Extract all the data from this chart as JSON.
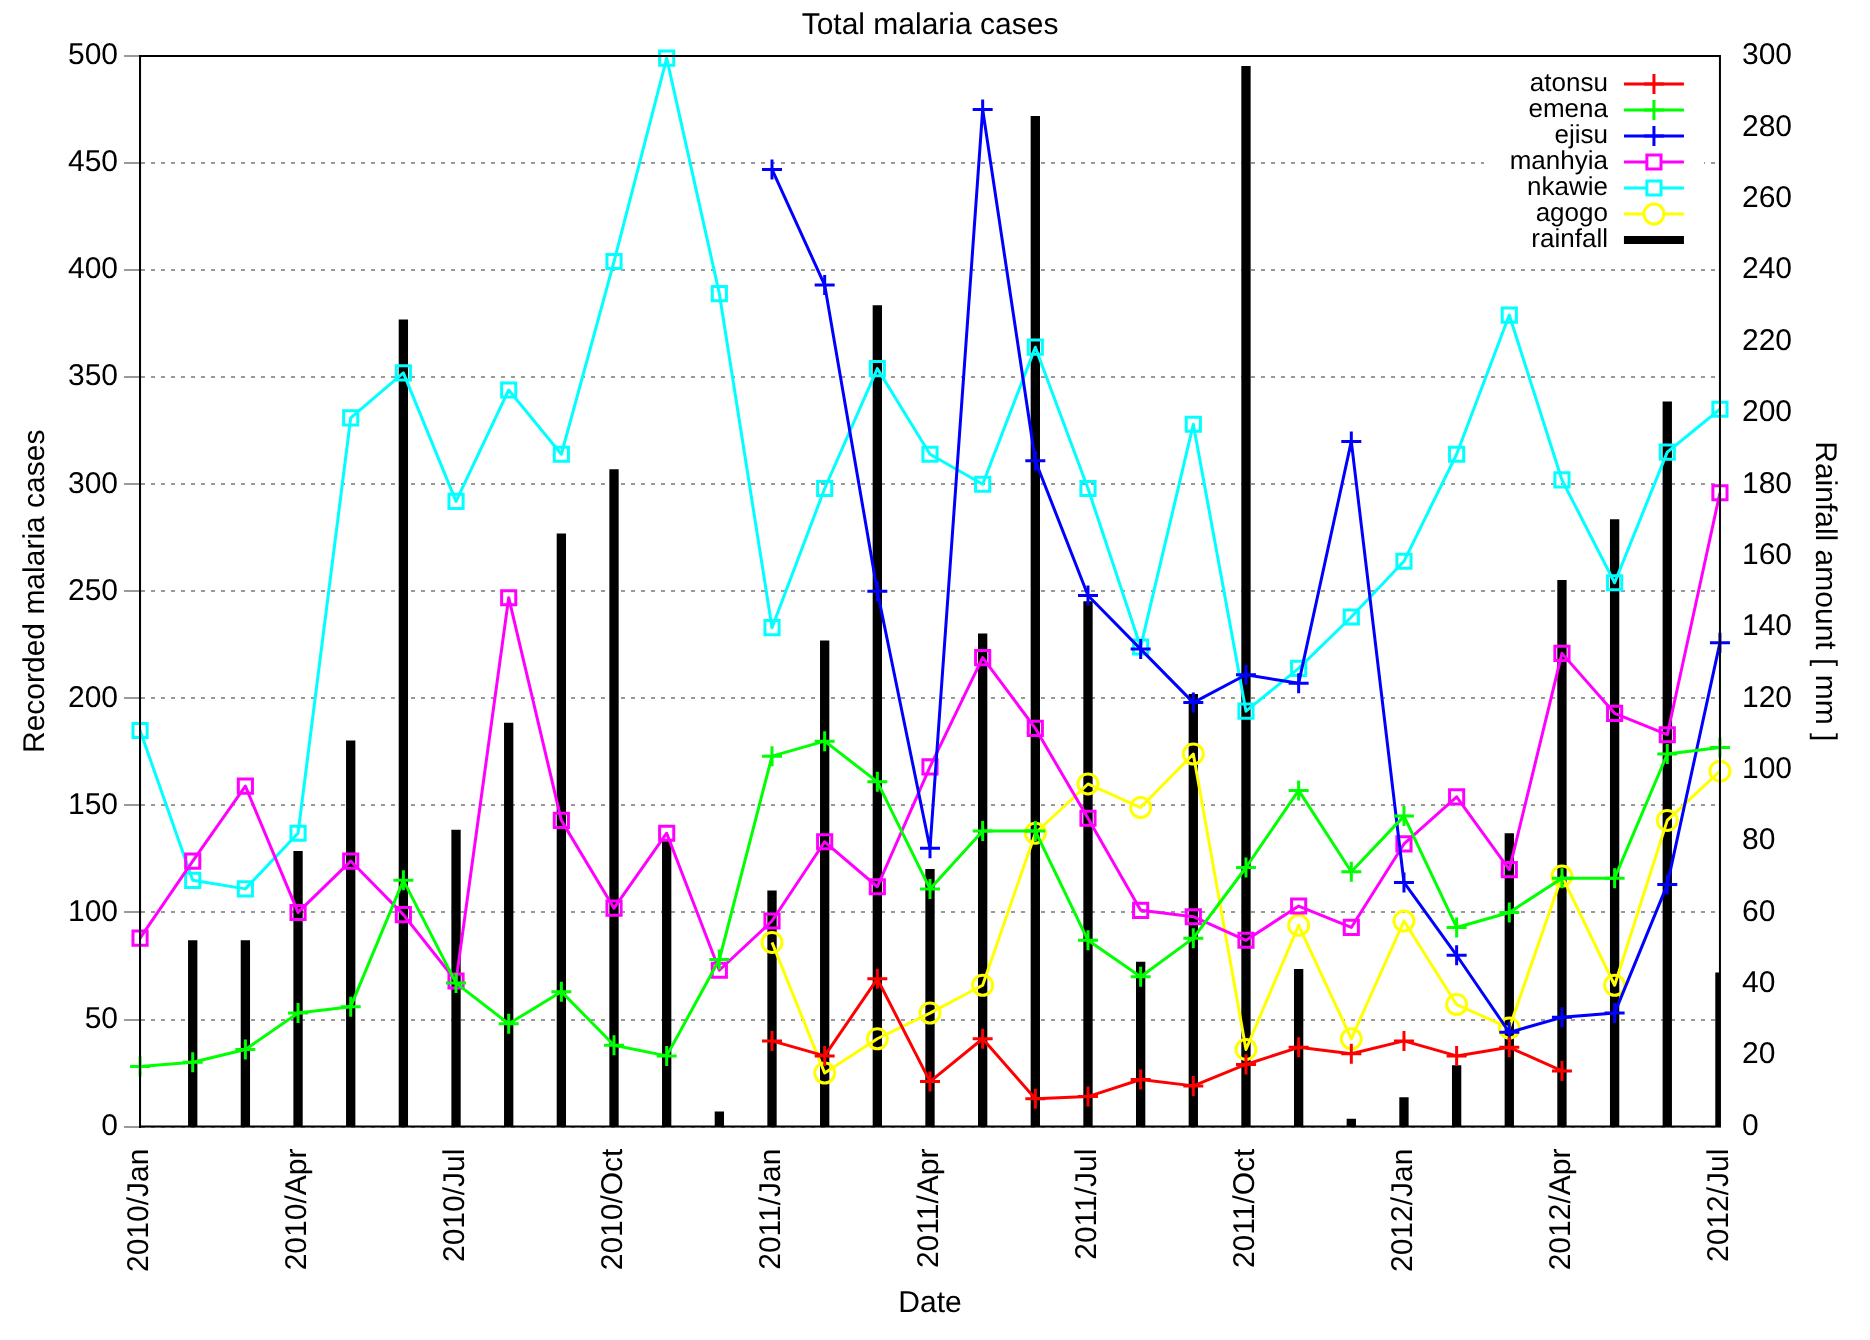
{
  "chart_data": {
    "type": "line",
    "title": "Total malaria cases",
    "xlabel": "Date",
    "ylabel": "Recorded malaria cases",
    "y2label": "Rainfall amount [ mm ]",
    "x": [
      "2010-01",
      "2010-02",
      "2010-03",
      "2010-04",
      "2010-05",
      "2010-06",
      "2010-07",
      "2010-08",
      "2010-09",
      "2010-10",
      "2010-11",
      "2010-12",
      "2011-01",
      "2011-02",
      "2011-03",
      "2011-04",
      "2011-05",
      "2011-06",
      "2011-07",
      "2011-08",
      "2011-09",
      "2011-10",
      "2011-11",
      "2011-12",
      "2012-01",
      "2012-02",
      "2012-03",
      "2012-04",
      "2012-05",
      "2012-06",
      "2012-07"
    ],
    "series": [
      {
        "name": "atonsu",
        "color": "#ff0000",
        "marker": "cross",
        "values": [
          null,
          null,
          null,
          null,
          null,
          null,
          null,
          null,
          null,
          null,
          null,
          null,
          40,
          33,
          69,
          21,
          41,
          13,
          14,
          22,
          19,
          29,
          37,
          34,
          40,
          33,
          37,
          26,
          null,
          null,
          null
        ]
      },
      {
        "name": "emena",
        "color": "#00ff00",
        "marker": "cross",
        "values": [
          28,
          30,
          36,
          53,
          56,
          115,
          67,
          48,
          63,
          38,
          33,
          78,
          173,
          180,
          161,
          111,
          138,
          138,
          87,
          70,
          88,
          121,
          157,
          119,
          145,
          93,
          100,
          116,
          116,
          174,
          177
        ]
      },
      {
        "name": "ejisu",
        "color": "#0000ff",
        "marker": "cross",
        "values": [
          null,
          null,
          null,
          null,
          null,
          null,
          null,
          null,
          null,
          null,
          null,
          null,
          447,
          393,
          250,
          130,
          475,
          311,
          248,
          223,
          198,
          211,
          207,
          320,
          114,
          80,
          44,
          51,
          53,
          113,
          226
        ]
      },
      {
        "name": "manhyia",
        "color": "#ff00ff",
        "marker": "square",
        "values": [
          88,
          124,
          159,
          100,
          124,
          99,
          68,
          247,
          143,
          102,
          137,
          73,
          96,
          133,
          112,
          168,
          219,
          186,
          144,
          101,
          98,
          87,
          103,
          93,
          132,
          154,
          120,
          221,
          193,
          183,
          296
        ]
      },
      {
        "name": "nkawie",
        "color": "#00ffff",
        "marker": "square",
        "values": [
          185,
          115,
          111,
          137,
          331,
          352,
          292,
          344,
          314,
          404,
          499,
          389,
          233,
          298,
          354,
          314,
          300,
          364,
          298,
          224,
          328,
          194,
          214,
          238,
          264,
          314,
          379,
          302,
          254,
          315,
          335
        ]
      },
      {
        "name": "agogo",
        "color": "#ffff00",
        "marker": "circle",
        "values": [
          null,
          null,
          null,
          null,
          null,
          null,
          null,
          null,
          null,
          null,
          null,
          null,
          86,
          25,
          41,
          53,
          66,
          137,
          160,
          149,
          174,
          36,
          94,
          41,
          96,
          57,
          46,
          117,
          66,
          143,
          166
        ]
      },
      {
        "name": "rainfall",
        "color": "#000000",
        "type": "bar",
        "axis": "y2",
        "values": [
          null,
          52,
          52,
          77,
          108,
          226,
          83,
          113,
          166,
          184,
          80,
          4,
          66,
          136,
          230,
          72,
          138,
          283,
          147,
          46,
          121,
          297,
          44,
          2,
          8,
          17,
          82,
          153,
          170,
          203,
          43
        ]
      }
    ],
    "xlim": [
      "2010-01",
      "2012-07"
    ],
    "xticks": [
      {
        "value": "2010-01",
        "label": "2010/Jan"
      },
      {
        "value": "2010-04",
        "label": "2010/Apr"
      },
      {
        "value": "2010-07",
        "label": "2010/Jul"
      },
      {
        "value": "2010-10",
        "label": "2010/Oct"
      },
      {
        "value": "2011-01",
        "label": "2011/Jan"
      },
      {
        "value": "2011-04",
        "label": "2011/Apr"
      },
      {
        "value": "2011-07",
        "label": "2011/Jul"
      },
      {
        "value": "2011-10",
        "label": "2011/Oct"
      },
      {
        "value": "2012-01",
        "label": "2012/Jan"
      },
      {
        "value": "2012-04",
        "label": "2012/Apr"
      },
      {
        "value": "2012-07",
        "label": "2012/Jul"
      }
    ],
    "ylim": [
      0,
      500
    ],
    "yticks": [
      0,
      50,
      100,
      150,
      200,
      250,
      300,
      350,
      400,
      450,
      500
    ],
    "y2lim": [
      0,
      300
    ],
    "y2ticks": [
      0,
      20,
      40,
      60,
      80,
      100,
      120,
      140,
      160,
      180,
      200,
      220,
      240,
      260,
      280,
      300
    ],
    "grid": "y",
    "legend": "top right",
    "line_style": "solid"
  }
}
